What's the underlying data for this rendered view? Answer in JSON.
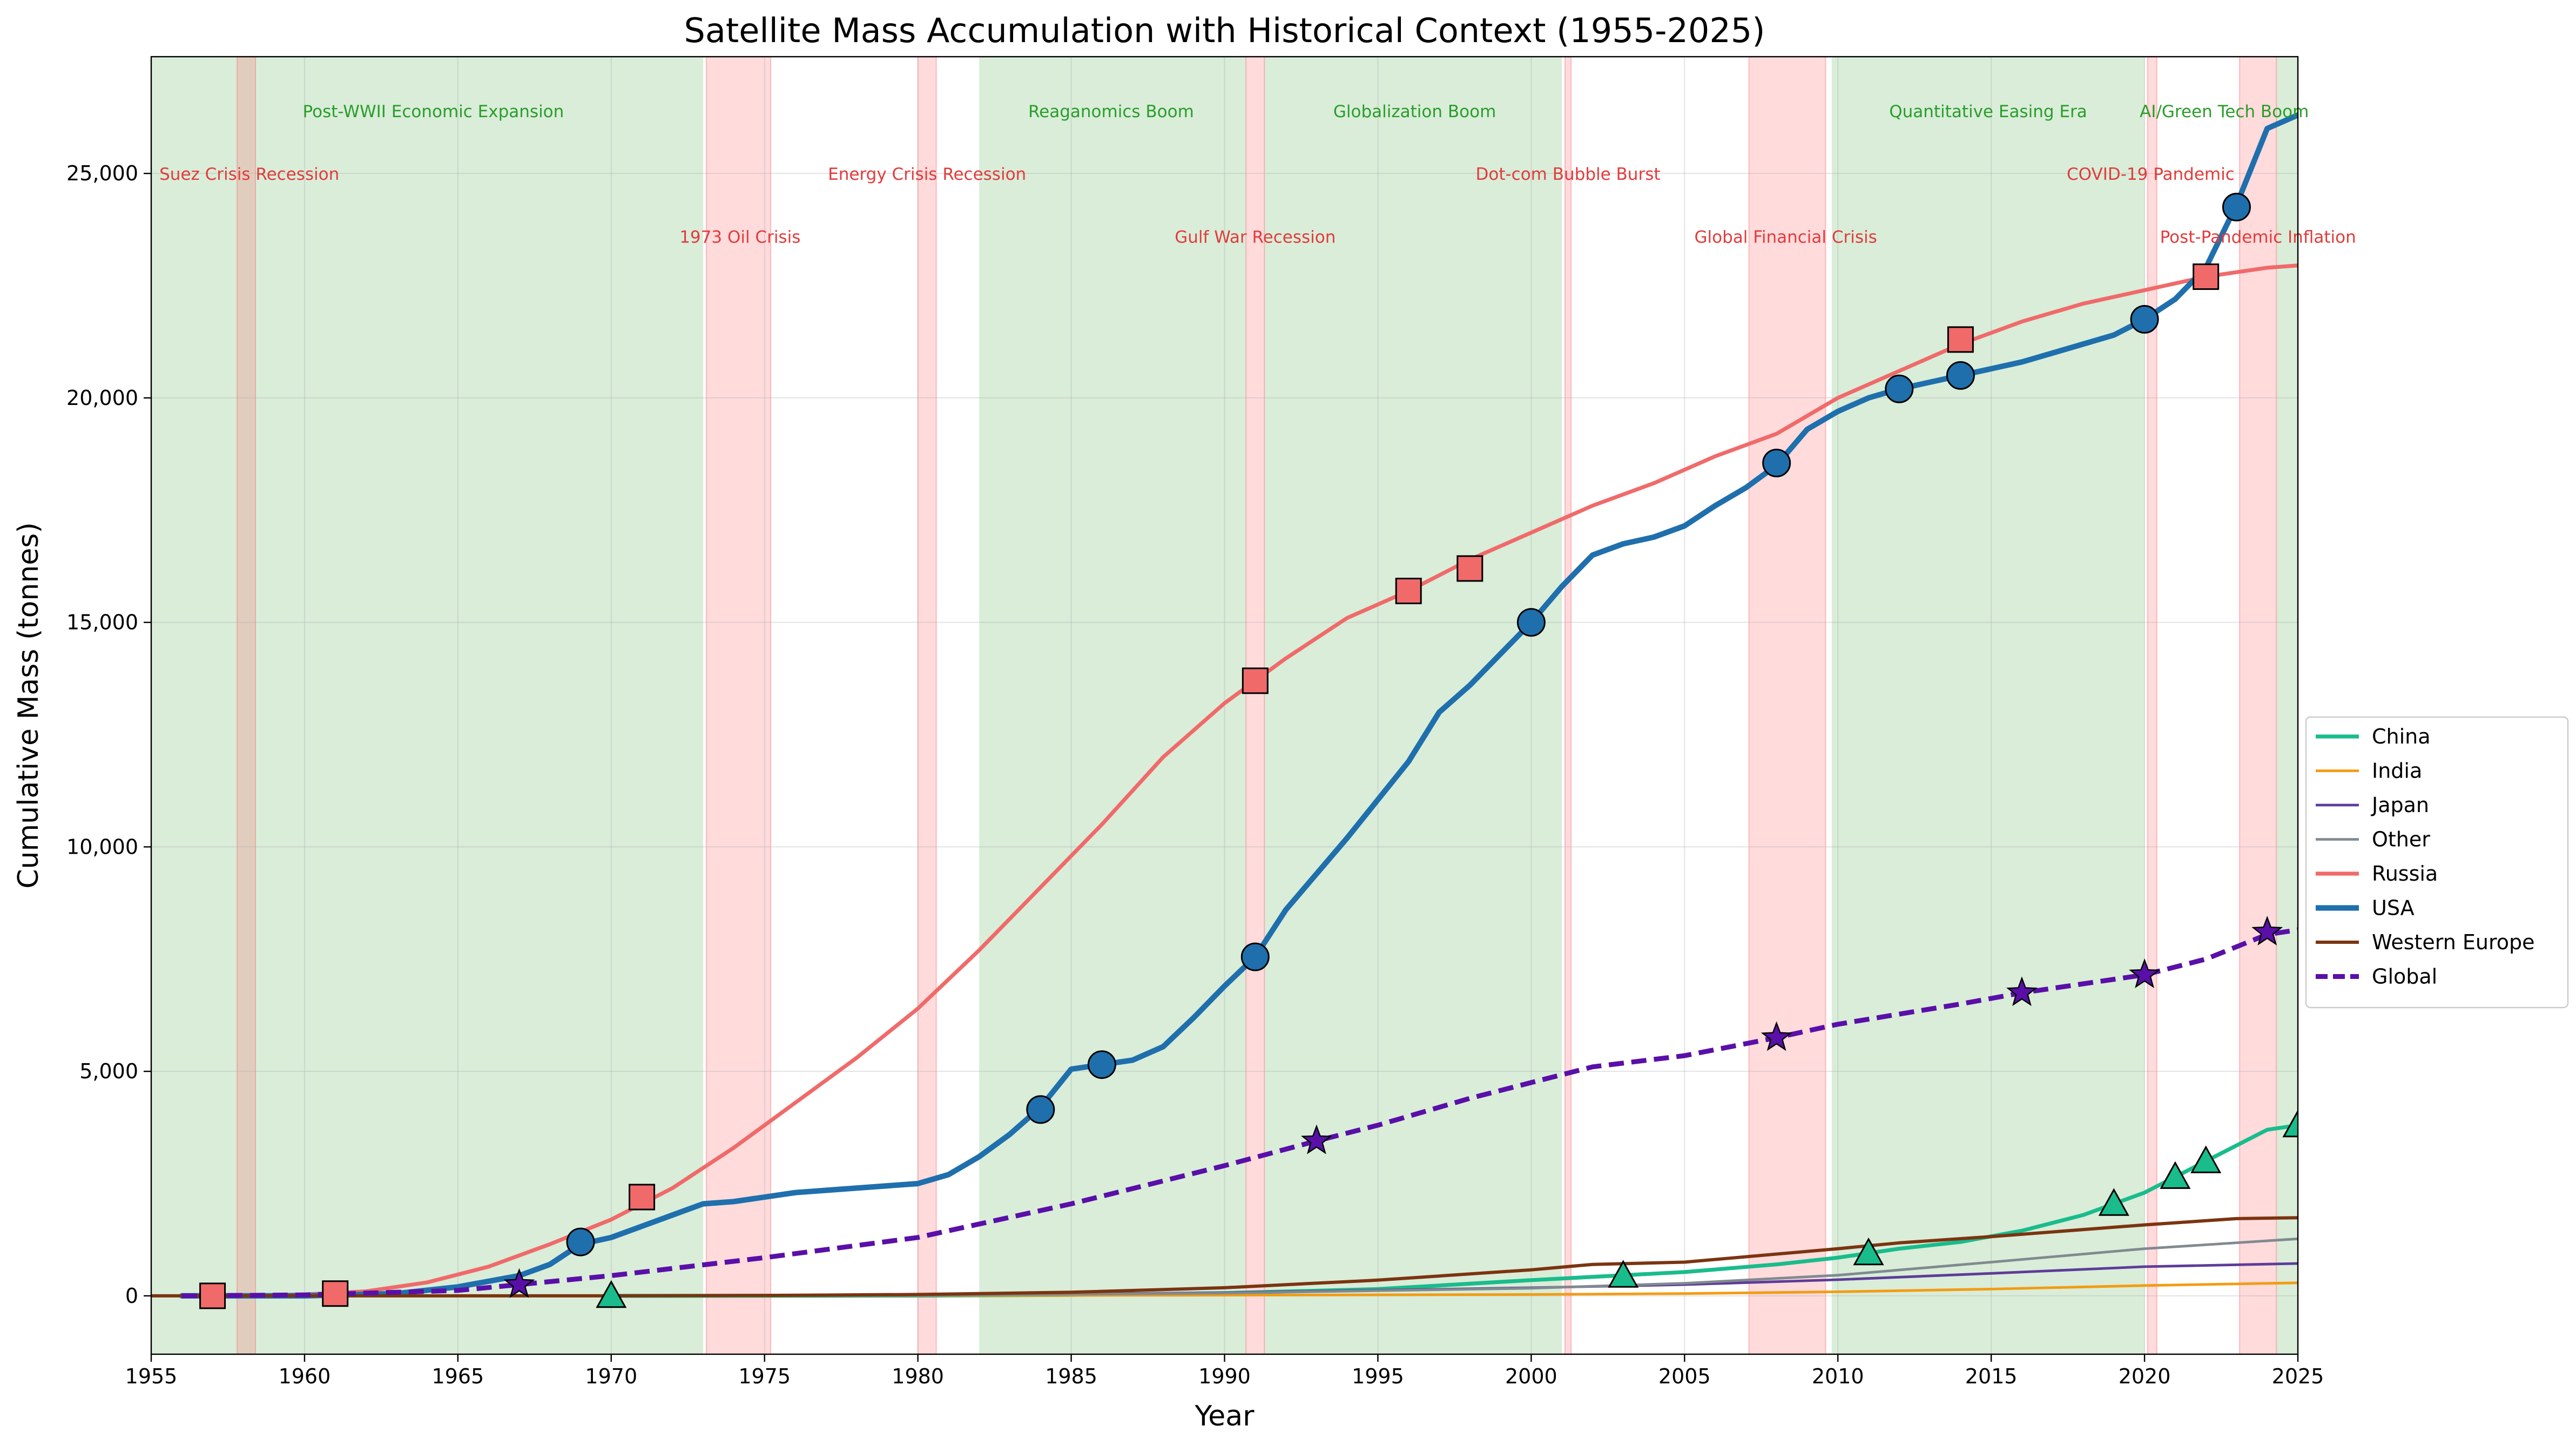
{
  "chart_data": {
    "type": "line",
    "title": "Satellite Mass Accumulation with Historical Context (1955-2025)",
    "xlabel": "Year",
    "ylabel": "Cumulative Mass (tonnes)",
    "xlim": [
      1955,
      2025
    ],
    "ylim": [
      -1300,
      27600
    ],
    "xticks": [
      1955,
      1960,
      1965,
      1970,
      1975,
      1980,
      1985,
      1990,
      1995,
      2000,
      2005,
      2010,
      2015,
      2020,
      2025
    ],
    "yticks": [
      0,
      5000,
      10000,
      15000,
      20000,
      25000
    ],
    "ytick_labels": [
      "0",
      "5,000",
      "10,000",
      "15,000",
      "20,000",
      "25,000"
    ],
    "grid": true,
    "legend_position": "center-right",
    "booms": [
      {
        "label": "Post-WWII Economic Expansion",
        "start": 1955,
        "end": 1973,
        "label_x": 1964.2,
        "label_y": 26400
      },
      {
        "label": "Reaganomics Boom",
        "start": 1982,
        "end": 1990.7,
        "label_x": 1986.3,
        "label_y": 26400
      },
      {
        "label": "Globalization Boom",
        "start": 1991.3,
        "end": 2001,
        "label_x": 1996.2,
        "label_y": 26400
      },
      {
        "label": "Quantitative Easing Era",
        "start": 2009.8,
        "end": 2020,
        "label_x": 2014.9,
        "label_y": 26400
      },
      {
        "label": "AI/Green Tech Boom",
        "start": 2024.3,
        "end": 2025,
        "label_x": 2022.6,
        "label_y": 26400
      }
    ],
    "recessions": [
      {
        "label": "Suez Crisis Recession",
        "start": 1957.8,
        "end": 1958.4,
        "label_x": 1958.2,
        "label_y": 25000
      },
      {
        "label": "1973 Oil Crisis",
        "start": 1973.1,
        "end": 1975.2,
        "label_x": 1974.2,
        "label_y": 23600
      },
      {
        "label": "Energy Crisis Recession",
        "start": 1980.0,
        "end": 1980.6,
        "label_x": 1980.3,
        "label_y": 25000
      },
      {
        "label": "Gulf War Recession",
        "start": 1990.7,
        "end": 1991.3,
        "label_x": 1991.0,
        "label_y": 23600
      },
      {
        "label": "Dot-com Bubble Burst",
        "start": 2001.1,
        "end": 2001.3,
        "label_x": 2001.2,
        "label_y": 25000
      },
      {
        "label": "Global Financial Crisis",
        "start": 2007.1,
        "end": 2009.6,
        "label_x": 2008.3,
        "label_y": 23600
      },
      {
        "label": "COVID-19 Pandemic",
        "start": 2020.1,
        "end": 2020.4,
        "label_x": 2020.2,
        "label_y": 25000
      },
      {
        "label": "Post-Pandemic Inflation",
        "start": 2023.1,
        "end": 2024.3,
        "label_x": 2023.7,
        "label_y": 23600
      }
    ],
    "series": [
      {
        "name": "China",
        "color": "#1abc8c",
        "width": 2.4,
        "dash": false,
        "marker": "triangle",
        "x": [
          1970,
          1975,
          1980,
          1985,
          1990,
          1995,
          2000,
          2005,
          2008,
          2010,
          2012,
          2014,
          2016,
          2018,
          2020,
          2022,
          2024,
          2025
        ],
        "y": [
          0,
          0,
          5,
          20,
          60,
          150,
          350,
          530,
          700,
          850,
          1050,
          1200,
          1450,
          1800,
          2300,
          3000,
          3700,
          3800
        ],
        "markers_x": [
          1970,
          2003,
          2011,
          2019,
          2021,
          2022,
          2025
        ],
        "markers_y": [
          0,
          450,
          950,
          2050,
          2650,
          3000,
          3800
        ]
      },
      {
        "name": "India",
        "color": "#f39c12",
        "width": 1.6,
        "dash": false,
        "marker": null,
        "x": [
          1955,
          1975,
          1980,
          1990,
          2000,
          2005,
          2010,
          2015,
          2020,
          2025
        ],
        "y": [
          0,
          0,
          5,
          15,
          30,
          50,
          90,
          150,
          230,
          290
        ],
        "markers_x": [],
        "markers_y": []
      },
      {
        "name": "Japan",
        "color": "#5e3c99",
        "width": 1.6,
        "dash": false,
        "marker": null,
        "x": [
          1955,
          1970,
          1980,
          1990,
          2000,
          2005,
          2010,
          2015,
          2020,
          2025
        ],
        "y": [
          0,
          0,
          10,
          70,
          180,
          250,
          360,
          500,
          650,
          720
        ],
        "markers_x": [],
        "markers_y": []
      },
      {
        "name": "Other",
        "color": "#808a8f",
        "width": 1.6,
        "dash": false,
        "marker": null,
        "x": [
          1955,
          1970,
          1980,
          1990,
          2000,
          2005,
          2010,
          2015,
          2020,
          2025
        ],
        "y": [
          0,
          0,
          10,
          60,
          170,
          280,
          460,
          750,
          1050,
          1270
        ],
        "markers_x": [],
        "markers_y": []
      },
      {
        "name": "Russia",
        "color": "#f06a6a",
        "width": 2.4,
        "dash": false,
        "marker": "square",
        "x": [
          1957,
          1960,
          1962,
          1964,
          1966,
          1968,
          1970,
          1972,
          1974,
          1976,
          1978,
          1980,
          1982,
          1984,
          1986,
          1988,
          1990,
          1992,
          1994,
          1996,
          1998,
          2000,
          2002,
          2004,
          2006,
          2008,
          2010,
          2012,
          2014,
          2016,
          2018,
          2020,
          2022,
          2024,
          2025
        ],
        "y": [
          0,
          30,
          100,
          300,
          650,
          1150,
          1700,
          2400,
          3300,
          4300,
          5300,
          6400,
          7700,
          9100,
          10500,
          12000,
          13200,
          14200,
          15100,
          15700,
          16400,
          17000,
          17600,
          18100,
          18700,
          19200,
          20000,
          20600,
          21200,
          21700,
          22100,
          22400,
          22700,
          22900,
          22950
        ],
        "markers_x": [
          1957,
          1961,
          1971,
          1991,
          1996,
          1998,
          2014,
          2022
        ],
        "markers_y": [
          0,
          50,
          2200,
          13700,
          15700,
          16200,
          21300,
          22700
        ]
      },
      {
        "name": "USA",
        "color": "#1f6fad",
        "width": 3.4,
        "dash": false,
        "marker": "circle",
        "x": [
          1956,
          1960,
          1963,
          1965,
          1967,
          1968,
          1969,
          1970,
          1971,
          1972,
          1973,
          1974,
          1975,
          1976,
          1978,
          1980,
          1981,
          1982,
          1983,
          1984,
          1985,
          1986,
          1987,
          1988,
          1989,
          1990,
          1991,
          1992,
          1994,
          1996,
          1997,
          1998,
          2000,
          2001,
          2002,
          2003,
          2004,
          2005,
          2006,
          2007,
          2008,
          2009,
          2010,
          2011,
          2012,
          2014,
          2016,
          2018,
          2019,
          2020,
          2021,
          2022,
          2023,
          2024,
          2025
        ],
        "y": [
          0,
          0,
          50,
          200,
          450,
          700,
          1150,
          1300,
          1550,
          1800,
          2050,
          2100,
          2200,
          2300,
          2400,
          2500,
          2700,
          3100,
          3600,
          4200,
          5050,
          5150,
          5250,
          5550,
          6200,
          6900,
          7550,
          8600,
          10200,
          11900,
          13000,
          13600,
          15000,
          15800,
          16500,
          16750,
          16900,
          17150,
          17600,
          18000,
          18500,
          19300,
          19700,
          20000,
          20200,
          20500,
          20800,
          21200,
          21400,
          21750,
          22200,
          22900,
          24300,
          26000,
          26300
        ],
        "markers_x": [
          1969,
          1984,
          1986,
          1991,
          2000,
          2008,
          2012,
          2014,
          2020,
          2023
        ],
        "markers_y": [
          1200,
          4150,
          5150,
          7550,
          15000,
          18550,
          20200,
          20500,
          21750,
          24250
        ]
      },
      {
        "name": "Western Europe",
        "color": "#7b3410",
        "width": 2.0,
        "dash": false,
        "marker": null,
        "x": [
          1955,
          1970,
          1975,
          1980,
          1985,
          1990,
          1995,
          2000,
          2002,
          2005,
          2010,
          2012,
          2015,
          2020,
          2023,
          2025
        ],
        "y": [
          0,
          0,
          10,
          30,
          80,
          180,
          350,
          580,
          700,
          750,
          1050,
          1180,
          1320,
          1580,
          1720,
          1740
        ],
        "markers_x": [],
        "markers_y": []
      },
      {
        "name": "Global",
        "color": "#5a0fa8",
        "width": 3.0,
        "dash": true,
        "marker": "star",
        "x": [
          1956,
          1960,
          1965,
          1967,
          1970,
          1975,
          1980,
          1985,
          1990,
          1993,
          1995,
          1998,
          2000,
          2002,
          2005,
          2008,
          2010,
          2014,
          2016,
          2018,
          2020,
          2022,
          2024,
          2025
        ],
        "y": [
          0,
          20,
          120,
          250,
          450,
          850,
          1300,
          2050,
          2900,
          3450,
          3800,
          4400,
          4750,
          5100,
          5350,
          5750,
          6050,
          6500,
          6750,
          6950,
          7150,
          7500,
          8050,
          8150
        ],
        "markers_x": [
          1967,
          1993,
          2008,
          2016,
          2020,
          2024
        ],
        "markers_y": [
          250,
          3450,
          5750,
          6750,
          7150,
          8100
        ]
      }
    ]
  }
}
